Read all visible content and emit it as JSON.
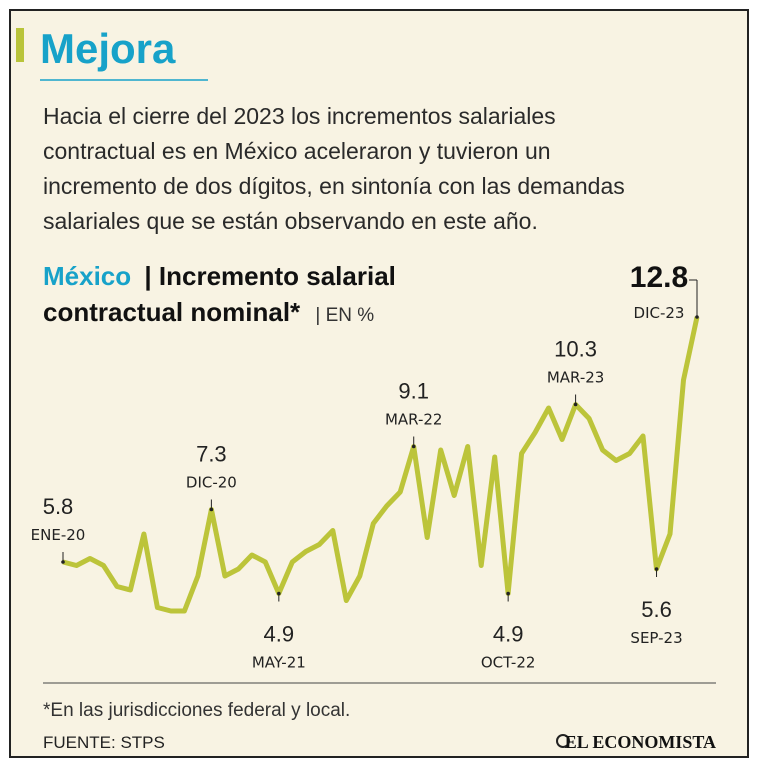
{
  "header": {
    "title": "Mejora",
    "text": [
      "Hacia el cierre del 2023 los incrementos salariales",
      "contractual es en México aceleraron y tuvieron un",
      "incremento de dos dígitos, en sintonía con las demandas",
      "salariales que se están observando en este año."
    ]
  },
  "chart_data": {
    "type": "line",
    "title": [
      "México",
      "| Incremento salarial",
      "contractual nominal*",
      "| EN %"
    ],
    "color": "#bcc43a",
    "categories": [
      "ENE-20",
      null,
      null,
      null,
      null,
      null,
      null,
      null,
      null,
      null,
      null,
      "DIC-20",
      null,
      null,
      null,
      null,
      "MAY-21",
      null,
      null,
      null,
      null,
      null,
      null,
      null,
      null,
      null,
      "MAR-22",
      null,
      null,
      null,
      null,
      null,
      null,
      "OCT-22",
      null,
      null,
      null,
      null,
      "MAR-23",
      null,
      null,
      null,
      null,
      null,
      "SEP-23",
      null,
      null,
      "DIC-23"
    ],
    "values": [
      5.8,
      5.7,
      5.9,
      5.7,
      5.1,
      5.0,
      6.6,
      4.5,
      4.4,
      4.4,
      5.4,
      7.3,
      5.4,
      5.6,
      6.0,
      5.8,
      4.9,
      5.8,
      6.1,
      6.3,
      6.7,
      4.7,
      5.4,
      6.9,
      7.4,
      7.8,
      9.1,
      6.5,
      9.0,
      7.7,
      9.1,
      5.7,
      8.8,
      4.9,
      8.9,
      9.5,
      10.2,
      9.3,
      10.3,
      9.9,
      9.0,
      8.7,
      8.9,
      9.4,
      5.6,
      6.6,
      11.0,
      12.8
    ]
  },
  "footer": {
    "note": "*En las jurisdicciones federal y local.",
    "source": "FUENTE: STPS",
    "logo": "EL ECONOMISTA"
  }
}
